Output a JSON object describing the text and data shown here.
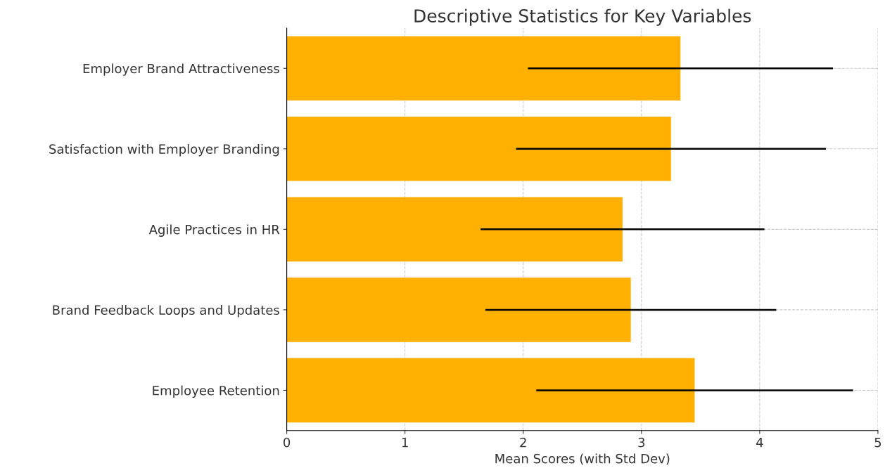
{
  "chart_data": {
    "type": "bar",
    "orientation": "horizontal",
    "title": "Descriptive Statistics for Key Variables",
    "xlabel": "Mean Scores (with Std Dev)",
    "categories": [
      "Employer Brand Attractiveness",
      "Satisfaction with Employer Branding",
      "Agile Practices in HR",
      "Brand Feedback Loops and Updates",
      "Employee Retention"
    ],
    "values": [
      3.33,
      3.25,
      2.84,
      2.91,
      3.45
    ],
    "errors": [
      1.29,
      1.31,
      1.2,
      1.23,
      1.34
    ],
    "color": "#ffb000",
    "xlim": [
      0,
      5
    ],
    "xticks": [
      0,
      1,
      2,
      3,
      4,
      5
    ],
    "grid": true
  }
}
